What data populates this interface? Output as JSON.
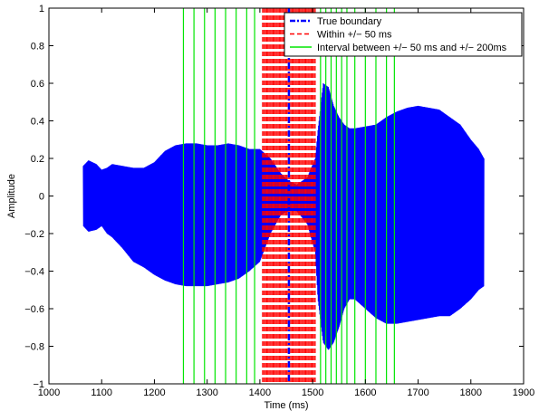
{
  "chart_data": {
    "type": "line",
    "title": "",
    "xlabel": "Time (ms)",
    "ylabel": "Amplitude",
    "xlim": [
      1000,
      1900
    ],
    "ylim": [
      -1,
      1
    ],
    "xticks": [
      1000,
      1100,
      1200,
      1300,
      1400,
      1500,
      1600,
      1700,
      1800,
      1900
    ],
    "yticks": [
      -1,
      -0.8,
      -0.6,
      -0.4,
      -0.2,
      0,
      0.2,
      0.4,
      0.6,
      0.8,
      1
    ],
    "grid": false,
    "legend_position": "top-right",
    "colors": {
      "signal": "#0000ff",
      "true_boundary": "#0000ff",
      "within": "#ff0000",
      "interval": "#00e600"
    },
    "legend": [
      {
        "label": "True boundary",
        "style": "dash-dot",
        "color": "#0000ff"
      },
      {
        "label": "Within +/− 50 ms",
        "style": "dashed",
        "color": "#ff0000"
      },
      {
        "label": "Interval between +/− 50 ms and +/− 200ms",
        "style": "solid",
        "color": "#00e600"
      }
    ],
    "true_boundary_x": 1455,
    "within_range": [
      1405,
      1505
    ],
    "within_line_spacing": 2,
    "interval_lines_x": [
      1255,
      1275,
      1295,
      1315,
      1335,
      1355,
      1375,
      1390,
      1515,
      1525,
      1535,
      1545,
      1555,
      1565,
      1580,
      1600,
      1620,
      1640,
      1655
    ],
    "signal_envelope": {
      "x": [
        1065,
        1075,
        1090,
        1100,
        1110,
        1120,
        1140,
        1160,
        1180,
        1200,
        1220,
        1240,
        1260,
        1280,
        1300,
        1320,
        1340,
        1360,
        1380,
        1400,
        1420,
        1440,
        1455,
        1470,
        1490,
        1505,
        1510,
        1520,
        1530,
        1540,
        1550,
        1560,
        1570,
        1580,
        1600,
        1620,
        1640,
        1660,
        1680,
        1700,
        1720,
        1740,
        1760,
        1780,
        1800,
        1815,
        1825
      ],
      "upper": [
        0.16,
        0.19,
        0.17,
        0.14,
        0.15,
        0.17,
        0.16,
        0.15,
        0.15,
        0.18,
        0.24,
        0.27,
        0.28,
        0.28,
        0.27,
        0.27,
        0.28,
        0.27,
        0.25,
        0.25,
        0.2,
        0.12,
        0.08,
        0.06,
        0.1,
        0.2,
        0.35,
        0.6,
        0.58,
        0.48,
        0.42,
        0.38,
        0.36,
        0.36,
        0.37,
        0.38,
        0.42,
        0.45,
        0.47,
        0.48,
        0.47,
        0.46,
        0.42,
        0.38,
        0.3,
        0.25,
        0.2
      ],
      "lower": [
        -0.16,
        -0.19,
        -0.18,
        -0.16,
        -0.2,
        -0.22,
        -0.28,
        -0.35,
        -0.38,
        -0.42,
        -0.45,
        -0.47,
        -0.48,
        -0.48,
        -0.48,
        -0.47,
        -0.46,
        -0.44,
        -0.4,
        -0.35,
        -0.2,
        -0.1,
        -0.08,
        -0.08,
        -0.15,
        -0.3,
        -0.55,
        -0.78,
        -0.82,
        -0.78,
        -0.7,
        -0.6,
        -0.55,
        -0.55,
        -0.6,
        -0.65,
        -0.68,
        -0.68,
        -0.67,
        -0.66,
        -0.65,
        -0.64,
        -0.64,
        -0.6,
        -0.55,
        -0.5,
        -0.48
      ]
    }
  }
}
